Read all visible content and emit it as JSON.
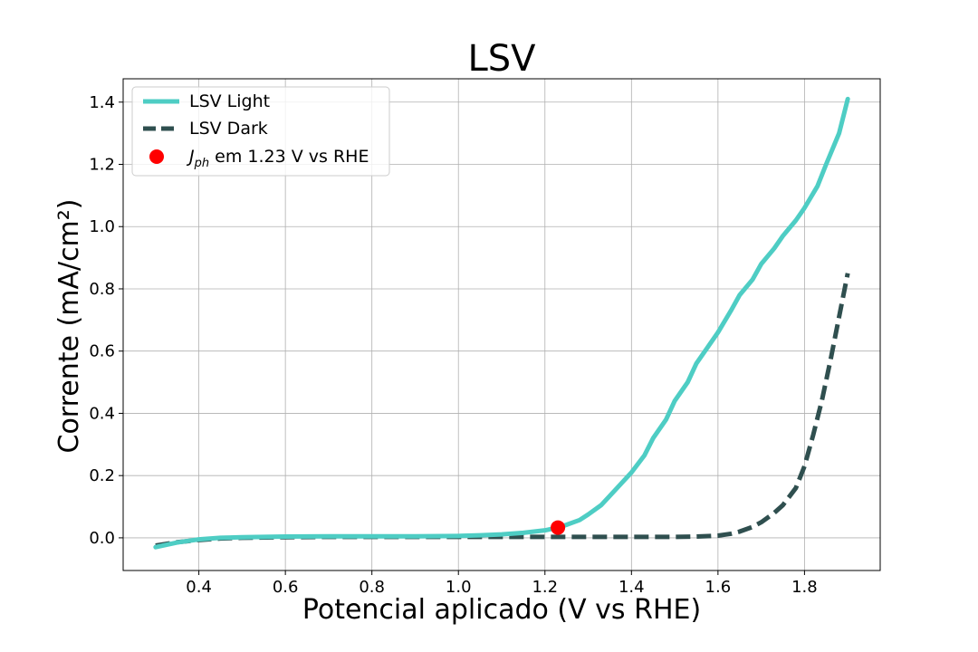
{
  "chart_data": {
    "type": "line",
    "title": "LSV",
    "xlabel": "Potencial aplicado (V vs RHE)",
    "ylabel": "Corrente (mA/cm²)",
    "xlim": [
      0.225,
      1.975
    ],
    "ylim": [
      -0.105,
      1.475
    ],
    "xticks": [
      "0.4",
      "0.6",
      "0.8",
      "1.0",
      "1.2",
      "1.4",
      "1.6",
      "1.8"
    ],
    "yticks": [
      "0.0",
      "0.2",
      "0.4",
      "0.6",
      "0.8",
      "1.0",
      "1.2",
      "1.4"
    ],
    "grid": true,
    "legend_position": "top-left",
    "series": [
      {
        "name": "LSV Light",
        "style": "solid",
        "color": "#4ecdc4",
        "x": [
          0.3,
          0.35,
          0.4,
          0.45,
          0.5,
          0.6,
          0.7,
          0.8,
          0.9,
          1.0,
          1.05,
          1.1,
          1.15,
          1.2,
          1.23,
          1.25,
          1.28,
          1.3,
          1.33,
          1.35,
          1.38,
          1.4,
          1.43,
          1.45,
          1.48,
          1.5,
          1.53,
          1.55,
          1.58,
          1.6,
          1.63,
          1.65,
          1.68,
          1.7,
          1.73,
          1.75,
          1.78,
          1.8,
          1.83,
          1.85,
          1.88,
          1.9
        ],
        "y": [
          -0.03,
          -0.015,
          -0.005,
          0.0,
          0.002,
          0.004,
          0.005,
          0.005,
          0.005,
          0.006,
          0.008,
          0.011,
          0.016,
          0.024,
          0.033,
          0.042,
          0.057,
          0.075,
          0.105,
          0.135,
          0.18,
          0.21,
          0.265,
          0.32,
          0.38,
          0.44,
          0.5,
          0.56,
          0.62,
          0.66,
          0.73,
          0.78,
          0.83,
          0.88,
          0.93,
          0.97,
          1.02,
          1.06,
          1.13,
          1.2,
          1.3,
          1.41
        ]
      },
      {
        "name": "LSV Dark",
        "style": "dashed",
        "color": "#2f4f4f",
        "x": [
          0.3,
          0.35,
          0.4,
          0.45,
          0.5,
          0.6,
          0.7,
          0.8,
          0.9,
          1.0,
          1.1,
          1.2,
          1.3,
          1.4,
          1.5,
          1.55,
          1.6,
          1.63,
          1.65,
          1.68,
          1.7,
          1.73,
          1.75,
          1.78,
          1.8,
          1.82,
          1.84,
          1.86,
          1.88,
          1.9
        ],
        "y": [
          -0.025,
          -0.014,
          -0.007,
          -0.002,
          0.0,
          0.002,
          0.003,
          0.003,
          0.003,
          0.003,
          0.003,
          0.003,
          0.003,
          0.003,
          0.003,
          0.004,
          0.007,
          0.013,
          0.02,
          0.035,
          0.05,
          0.08,
          0.105,
          0.16,
          0.23,
          0.33,
          0.44,
          0.57,
          0.71,
          0.85
        ]
      }
    ],
    "points": [
      {
        "name": "J_ph em 1.23 V vs RHE",
        "x": 1.23,
        "y": 0.033,
        "color": "#ff0000"
      }
    ],
    "legend": [
      {
        "label": "LSV Light"
      },
      {
        "label": "LSV Dark"
      },
      {
        "label_main": "J",
        "label_sub": "ph",
        "label_rest": " em 1.23 V vs RHE"
      }
    ]
  }
}
